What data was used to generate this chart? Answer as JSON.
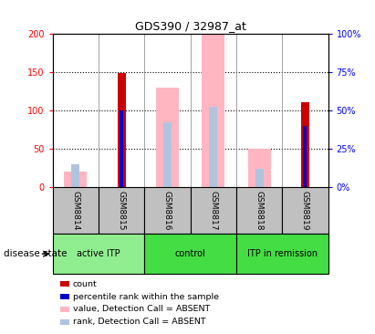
{
  "title": "GDS390 / 32987_at",
  "samples": [
    "GSM8814",
    "GSM8815",
    "GSM8816",
    "GSM8817",
    "GSM8818",
    "GSM8819"
  ],
  "count_values": [
    null,
    148,
    null,
    null,
    null,
    110
  ],
  "percentile_values": [
    null,
    50,
    null,
    null,
    null,
    40
  ],
  "absent_value": [
    20,
    null,
    130,
    200,
    50,
    null
  ],
  "absent_rank": [
    15,
    null,
    42,
    52,
    12,
    null
  ],
  "ylim_left": [
    0,
    200
  ],
  "ylim_right": [
    0,
    100
  ],
  "yticks_left": [
    0,
    50,
    100,
    150,
    200
  ],
  "yticks_right": [
    0,
    25,
    50,
    75,
    100
  ],
  "ytick_labels_left": [
    "0",
    "50",
    "100",
    "150",
    "200"
  ],
  "ytick_labels_right": [
    "0%",
    "25%",
    "50%",
    "75%",
    "100%"
  ],
  "color_count": "#CC0000",
  "color_percentile": "#0000CC",
  "color_absent_value": "#FFB6C1",
  "color_absent_rank": "#B0C4DE",
  "group_info": [
    {
      "start": 0,
      "end": 2,
      "label": "active ITP",
      "color": "#90EE90"
    },
    {
      "start": 2,
      "end": 4,
      "label": "control",
      "color": "#44DD44"
    },
    {
      "start": 4,
      "end": 6,
      "label": "ITP in remission",
      "color": "#44DD44"
    }
  ],
  "legend_colors": [
    "#CC0000",
    "#0000CC",
    "#FFB6C1",
    "#B0C4DE"
  ],
  "legend_labels": [
    "count",
    "percentile rank within the sample",
    "value, Detection Call = ABSENT",
    "rank, Detection Call = ABSENT"
  ]
}
